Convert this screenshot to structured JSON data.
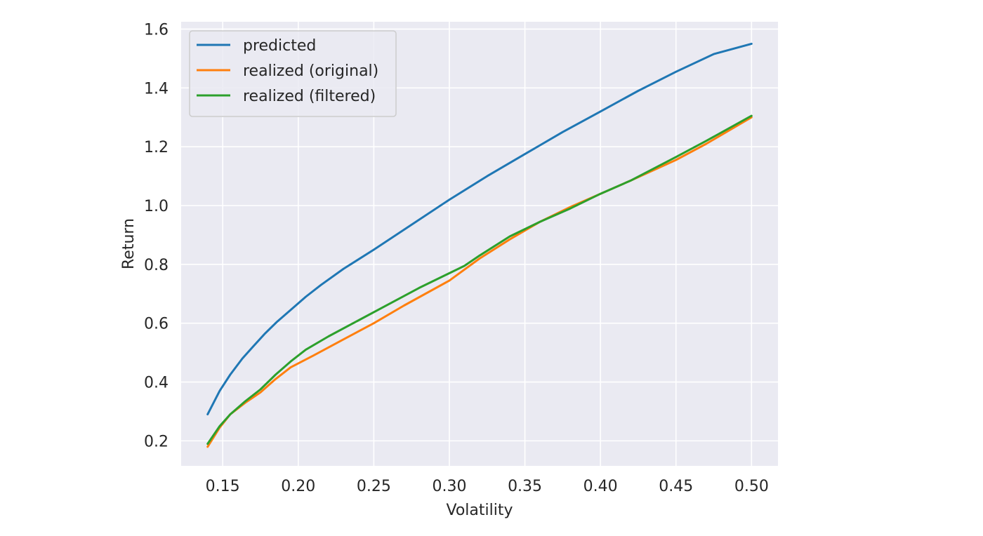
{
  "chart_data": {
    "type": "line",
    "title": "",
    "xlabel": "Volatility",
    "ylabel": "Return",
    "xlim": [
      0.1225,
      0.5175
    ],
    "ylim": [
      0.115,
      1.625
    ],
    "xticks": [
      0.15,
      0.2,
      0.25,
      0.3,
      0.35,
      0.4,
      0.45,
      0.5
    ],
    "xtick_labels": [
      "0.15",
      "0.20",
      "0.25",
      "0.30",
      "0.35",
      "0.40",
      "0.45",
      "0.50"
    ],
    "yticks": [
      0.2,
      0.4,
      0.6,
      0.8,
      1.0,
      1.2,
      1.4,
      1.6
    ],
    "ytick_labels": [
      "0.2",
      "0.4",
      "0.6",
      "0.8",
      "1.0",
      "1.2",
      "1.4",
      "1.6"
    ],
    "grid": true,
    "legend_position": "top-left",
    "colors": {
      "background": "#eaeaf2",
      "grid": "#ffffff",
      "predicted": "#1f77b4",
      "original": "#ff7f0e",
      "filtered": "#2ca02c"
    },
    "series": [
      {
        "name": "predicted",
        "color": "#1f77b4",
        "x": [
          0.14,
          0.148,
          0.155,
          0.163,
          0.17,
          0.178,
          0.186,
          0.195,
          0.205,
          0.215,
          0.23,
          0.25,
          0.275,
          0.3,
          0.325,
          0.35,
          0.375,
          0.4,
          0.425,
          0.45,
          0.475,
          0.5
        ],
        "y": [
          0.29,
          0.37,
          0.425,
          0.48,
          0.52,
          0.565,
          0.605,
          0.645,
          0.69,
          0.73,
          0.785,
          0.85,
          0.935,
          1.02,
          1.1,
          1.175,
          1.25,
          1.32,
          1.39,
          1.455,
          1.515,
          1.55
        ]
      },
      {
        "name": "realized (original)",
        "color": "#ff7f0e",
        "x": [
          0.14,
          0.148,
          0.155,
          0.165,
          0.175,
          0.185,
          0.195,
          0.21,
          0.23,
          0.25,
          0.27,
          0.3,
          0.32,
          0.34,
          0.36,
          0.38,
          0.4,
          0.42,
          0.45,
          0.47,
          0.5
        ],
        "y": [
          0.18,
          0.245,
          0.29,
          0.33,
          0.365,
          0.41,
          0.45,
          0.49,
          0.545,
          0.6,
          0.66,
          0.745,
          0.82,
          0.885,
          0.945,
          0.995,
          1.04,
          1.085,
          1.155,
          1.21,
          1.3
        ]
      },
      {
        "name": "realized (filtered)",
        "color": "#2ca02c",
        "x": [
          0.14,
          0.148,
          0.155,
          0.165,
          0.175,
          0.185,
          0.195,
          0.205,
          0.22,
          0.24,
          0.26,
          0.28,
          0.3,
          0.31,
          0.32,
          0.34,
          0.36,
          0.38,
          0.4,
          0.42,
          0.45,
          0.47,
          0.5
        ],
        "y": [
          0.19,
          0.25,
          0.29,
          0.335,
          0.375,
          0.425,
          0.47,
          0.51,
          0.555,
          0.61,
          0.665,
          0.72,
          0.77,
          0.795,
          0.83,
          0.895,
          0.945,
          0.99,
          1.04,
          1.085,
          1.165,
          1.22,
          1.305
        ]
      }
    ]
  }
}
